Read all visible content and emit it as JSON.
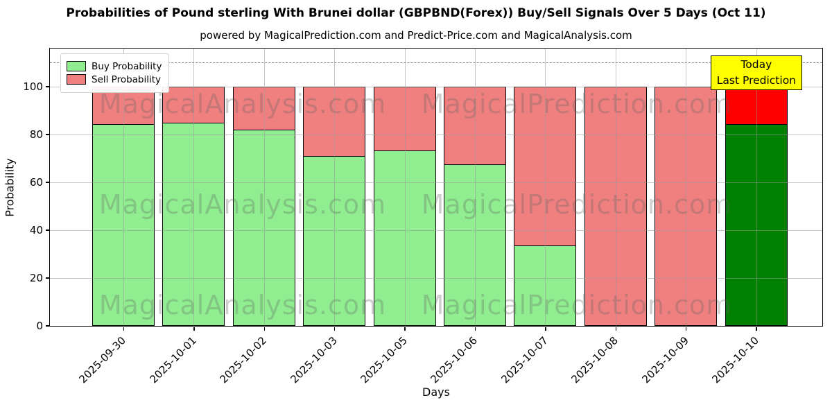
{
  "title": "Probabilities of Pound sterling With Brunei dollar (GBPBND(Forex)) Buy/Sell Signals Over 5 Days (Oct 11)",
  "subtitle": "powered by MagicalPrediction.com and Predict-Price.com and MagicalAnalysis.com",
  "chart_data": {
    "type": "bar",
    "stacked": true,
    "title": "Probabilities of Pound sterling With Brunei dollar (GBPBND(Forex)) Buy/Sell Signals Over 5 Days (Oct 11)",
    "subtitle": "powered by MagicalPrediction.com and Predict-Price.com and MagicalAnalysis.com",
    "xlabel": "Days",
    "ylabel": "Probability",
    "categories": [
      "2025-09-30",
      "2025-10-01",
      "2025-10-02",
      "2025-10-03",
      "2025-10-05",
      "2025-10-06",
      "2025-10-07",
      "2025-10-08",
      "2025-10-09",
      "2025-10-10"
    ],
    "series": [
      {
        "name": "Buy Probability",
        "color": "#90EE90",
        "values": [
          84.5,
          85,
          82,
          71,
          73.5,
          67.5,
          33.5,
          0,
          0,
          84.5
        ]
      },
      {
        "name": "Sell Probability",
        "color": "#F08080",
        "values": [
          15.5,
          15,
          18,
          29,
          26.5,
          32.5,
          66.5,
          100,
          100,
          15.5
        ]
      }
    ],
    "today_bar": {
      "index": 9,
      "buy_color": "#008000",
      "sell_color": "#FF0000"
    },
    "ylim": [
      0,
      116
    ],
    "yticks": [
      0,
      20,
      40,
      60,
      80,
      100
    ],
    "dashed_guideline_y": 110,
    "grid": true,
    "legend_position": "upper-left",
    "bar_edge_color": "#000000",
    "annotation": {
      "lines": [
        "Today",
        "Last Prediction"
      ],
      "bg_color": "#FFFF00"
    },
    "watermarks": {
      "left_text": "MagicalAnalysis.com",
      "right_text": "MagicalPrediction.com"
    }
  }
}
